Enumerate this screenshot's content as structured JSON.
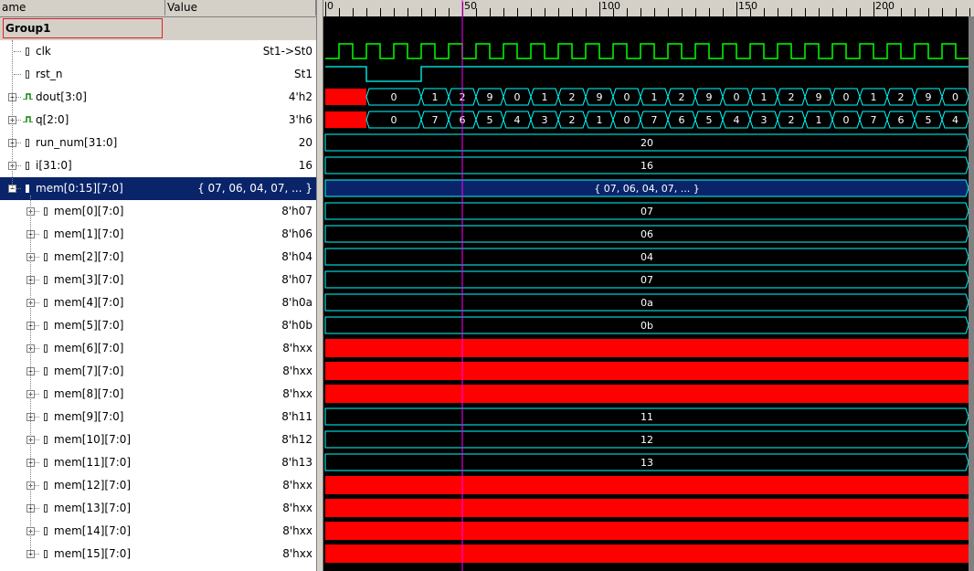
{
  "header": {
    "name_col": "ame",
    "value_col": "Value"
  },
  "group": {
    "name": "Group1"
  },
  "signals": [
    {
      "name": "clk",
      "value": "St1->St0",
      "kind": "bit",
      "expand": false,
      "indent": 0
    },
    {
      "name": "rst_n",
      "value": "St1",
      "kind": "bit",
      "expand": false,
      "indent": 0
    },
    {
      "name": "dout[3:0]",
      "value": "4'h2",
      "kind": "bus",
      "expand": true,
      "indent": 0
    },
    {
      "name": "q[2:0]",
      "value": "3'h6",
      "kind": "bus",
      "expand": true,
      "indent": 0
    },
    {
      "name": "run_num[31:0]",
      "value": "20",
      "kind": "bit",
      "expand": true,
      "indent": 0
    },
    {
      "name": "i[31:0]",
      "value": "16",
      "kind": "bit",
      "expand": true,
      "indent": 0
    },
    {
      "name": "mem[0:15][7:0]",
      "value": "{ 07, 06, 04, 07, ... }",
      "kind": "bit",
      "expand": true,
      "expanded": true,
      "indent": 0,
      "selected": true
    },
    {
      "name": "mem[0][7:0]",
      "value": "8'h07",
      "kind": "bit",
      "expand": true,
      "indent": 1
    },
    {
      "name": "mem[1][7:0]",
      "value": "8'h06",
      "kind": "bit",
      "expand": true,
      "indent": 1
    },
    {
      "name": "mem[2][7:0]",
      "value": "8'h04",
      "kind": "bit",
      "expand": true,
      "indent": 1
    },
    {
      "name": "mem[3][7:0]",
      "value": "8'h07",
      "kind": "bit",
      "expand": true,
      "indent": 1
    },
    {
      "name": "mem[4][7:0]",
      "value": "8'h0a",
      "kind": "bit",
      "expand": true,
      "indent": 1
    },
    {
      "name": "mem[5][7:0]",
      "value": "8'h0b",
      "kind": "bit",
      "expand": true,
      "indent": 1
    },
    {
      "name": "mem[6][7:0]",
      "value": "8'hxx",
      "kind": "bit",
      "expand": true,
      "indent": 1
    },
    {
      "name": "mem[7][7:0]",
      "value": "8'hxx",
      "kind": "bit",
      "expand": true,
      "indent": 1
    },
    {
      "name": "mem[8][7:0]",
      "value": "8'hxx",
      "kind": "bit",
      "expand": true,
      "indent": 1
    },
    {
      "name": "mem[9][7:0]",
      "value": "8'h11",
      "kind": "bit",
      "expand": true,
      "indent": 1
    },
    {
      "name": "mem[10][7:0]",
      "value": "8'h12",
      "kind": "bit",
      "expand": true,
      "indent": 1
    },
    {
      "name": "mem[11][7:0]",
      "value": "8'h13",
      "kind": "bit",
      "expand": true,
      "indent": 1
    },
    {
      "name": "mem[12][7:0]",
      "value": "8'hxx",
      "kind": "bit",
      "expand": true,
      "indent": 1
    },
    {
      "name": "mem[13][7:0]",
      "value": "8'hxx",
      "kind": "bit",
      "expand": true,
      "indent": 1
    },
    {
      "name": "mem[14][7:0]",
      "value": "8'hxx",
      "kind": "bit",
      "expand": true,
      "indent": 1
    },
    {
      "name": "mem[15][7:0]",
      "value": "8'hxx",
      "kind": "bit",
      "expand": true,
      "indent": 1
    }
  ],
  "timeline": {
    "labels": [
      "0",
      "50",
      "100",
      "150",
      "200"
    ],
    "cursor_time": 50,
    "clock_half_period": 5,
    "reset_low_from": 15,
    "reset_low_to": 35
  },
  "waves": {
    "dout": {
      "unknown_until": 15,
      "segments": [
        [
          "0",
          15,
          35
        ],
        [
          "1",
          35,
          45
        ],
        [
          "2",
          45,
          55
        ],
        [
          "9",
          55,
          65
        ],
        [
          "0",
          65,
          75
        ],
        [
          "1",
          75,
          85
        ],
        [
          "2",
          85,
          95
        ],
        [
          "9",
          95,
          105
        ],
        [
          "0",
          105,
          115
        ],
        [
          "1",
          115,
          125
        ],
        [
          "2",
          125,
          135
        ],
        [
          "9",
          135,
          145
        ],
        [
          "0",
          145,
          155
        ],
        [
          "1",
          155,
          165
        ],
        [
          "2",
          165,
          175
        ],
        [
          "9",
          175,
          185
        ],
        [
          "0",
          185,
          195
        ],
        [
          "1",
          195,
          205
        ],
        [
          "2",
          205,
          215
        ],
        [
          "9",
          215,
          225
        ],
        [
          "0",
          225,
          235
        ]
      ]
    },
    "q": {
      "unknown_until": 15,
      "segments": [
        [
          "0",
          15,
          35
        ],
        [
          "7",
          35,
          45
        ],
        [
          "6",
          45,
          55
        ],
        [
          "5",
          55,
          65
        ],
        [
          "4",
          65,
          75
        ],
        [
          "3",
          75,
          85
        ],
        [
          "2",
          85,
          95
        ],
        [
          "1",
          95,
          105
        ],
        [
          "0",
          105,
          115
        ],
        [
          "7",
          115,
          125
        ],
        [
          "6",
          125,
          135
        ],
        [
          "5",
          135,
          145
        ],
        [
          "4",
          145,
          155
        ],
        [
          "3",
          155,
          165
        ],
        [
          "2",
          165,
          175
        ],
        [
          "1",
          175,
          185
        ],
        [
          "0",
          185,
          195
        ],
        [
          "7",
          195,
          205
        ],
        [
          "6",
          205,
          215
        ],
        [
          "5",
          215,
          225
        ],
        [
          "4",
          225,
          235
        ]
      ]
    },
    "run_num": "20",
    "i": "16",
    "mem": "{ 07, 06, 04, 07, ... }",
    "mem_items": [
      "07",
      "06",
      "04",
      "07",
      "0a",
      "0b",
      "",
      "",
      "",
      "11",
      "12",
      "13",
      "",
      "",
      "",
      ""
    ]
  },
  "colors": {
    "wave": "#00ffff",
    "clock": "#00ff00",
    "unknown": "#ff0000",
    "cursor": "#ff00ff",
    "selection": "#0a246a",
    "value_text": "#ffffff"
  }
}
